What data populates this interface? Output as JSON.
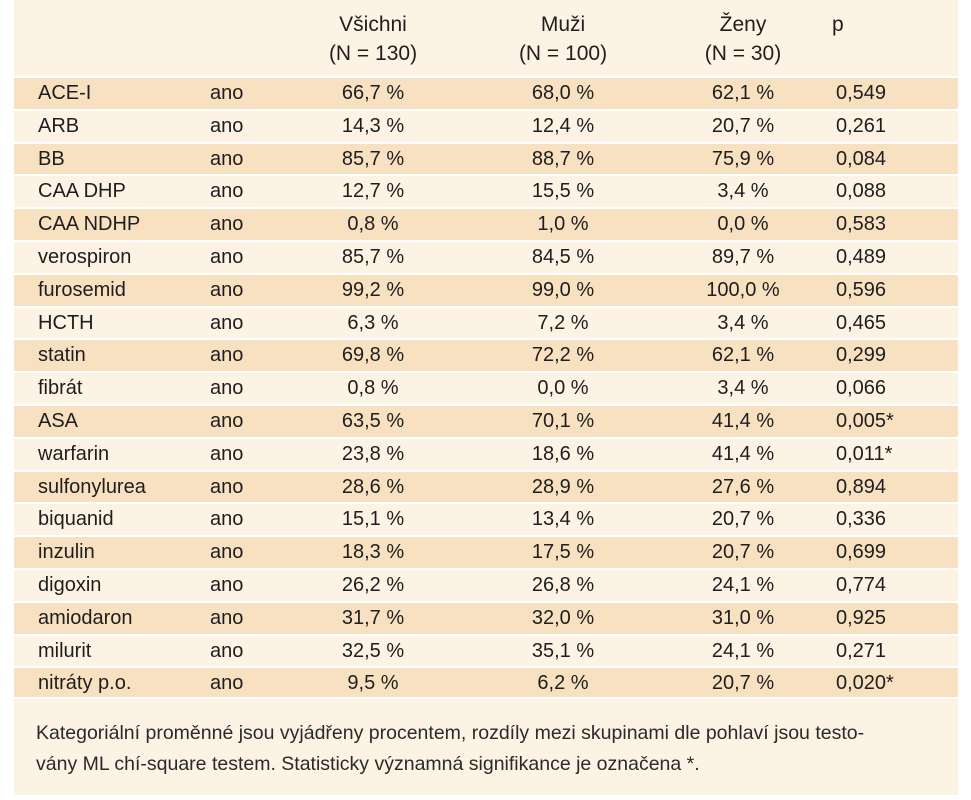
{
  "columns": {
    "all": {
      "name": "Všichni",
      "n": "(N = 130)"
    },
    "men": {
      "name": "Muži",
      "n": "(N = 100)"
    },
    "women": {
      "name": "Ženy",
      "n": "(N = 30)"
    },
    "p": {
      "name": "p"
    }
  },
  "rows": [
    {
      "name": "ACE-I",
      "answer": "ano",
      "all": "66,7 %",
      "men": "68,0 %",
      "women": "62,1 %",
      "p": "0,549"
    },
    {
      "name": "ARB",
      "answer": "ano",
      "all": "14,3 %",
      "men": "12,4 %",
      "women": "20,7 %",
      "p": "0,261"
    },
    {
      "name": "BB",
      "answer": "ano",
      "all": "85,7 %",
      "men": "88,7 %",
      "women": "75,9 %",
      "p": "0,084"
    },
    {
      "name": "CAA DHP",
      "answer": "ano",
      "all": "12,7 %",
      "men": "15,5 %",
      "women": "3,4 %",
      "p": "0,088"
    },
    {
      "name": "CAA NDHP",
      "answer": "ano",
      "all": "0,8 %",
      "men": "1,0 %",
      "women": "0,0 %",
      "p": "0,583"
    },
    {
      "name": "verospiron",
      "answer": "ano",
      "all": "85,7 %",
      "men": "84,5 %",
      "women": "89,7 %",
      "p": "0,489"
    },
    {
      "name": "furosemid",
      "answer": "ano",
      "all": "99,2 %",
      "men": "99,0 %",
      "women": "100,0 %",
      "p": "0,596"
    },
    {
      "name": "HCTH",
      "answer": "ano",
      "all": "6,3 %",
      "men": "7,2 %",
      "women": "3,4 %",
      "p": "0,465"
    },
    {
      "name": "statin",
      "answer": "ano",
      "all": "69,8 %",
      "men": "72,2 %",
      "women": "62,1 %",
      "p": "0,299"
    },
    {
      "name": "fibrát",
      "answer": "ano",
      "all": "0,8 %",
      "men": "0,0 %",
      "women": "3,4 %",
      "p": "0,066"
    },
    {
      "name": "ASA",
      "answer": "ano",
      "all": "63,5 %",
      "men": "70,1 %",
      "women": "41,4 %",
      "p": "0,005*"
    },
    {
      "name": "warfarin",
      "answer": "ano",
      "all": "23,8 %",
      "men": "18,6 %",
      "women": "41,4 %",
      "p": "0,011*"
    },
    {
      "name": "sulfonylurea",
      "answer": "ano",
      "all": "28,6 %",
      "men": "28,9 %",
      "women": "27,6 %",
      "p": "0,894"
    },
    {
      "name": "biquanid",
      "answer": "ano",
      "all": "15,1 %",
      "men": "13,4 %",
      "women": "20,7 %",
      "p": "0,336"
    },
    {
      "name": "inzulin",
      "answer": "ano",
      "all": "18,3 %",
      "men": "17,5 %",
      "women": "20,7 %",
      "p": "0,699"
    },
    {
      "name": "digoxin",
      "answer": "ano",
      "all": "26,2 %",
      "men": "26,8 %",
      "women": "24,1 %",
      "p": "0,774"
    },
    {
      "name": "amiodaron",
      "answer": "ano",
      "all": "31,7 %",
      "men": "32,0 %",
      "women": "31,0 %",
      "p": "0,925"
    },
    {
      "name": "milurit",
      "answer": "ano",
      "all": "32,5 %",
      "men": "35,1 %",
      "women": "24,1 %",
      "p": "0,271"
    },
    {
      "name": "nitráty p.o.",
      "answer": "ano",
      "all": "9,5 %",
      "men": "6,2 %",
      "women": "20,7 %",
      "p": "0,020*"
    }
  ],
  "footnote": {
    "line1": "Kategoriální proměnné jsou vyjádřeny procentem, rozdíly mezi skupinami dle pohlaví jsou testo-",
    "line2": "vány ML chí-square testem. Statisticky významná signifikance je označena *."
  },
  "colors": {
    "band": "#f8e1c1",
    "background": "#fcf3e4",
    "rule": "#ffffff"
  }
}
